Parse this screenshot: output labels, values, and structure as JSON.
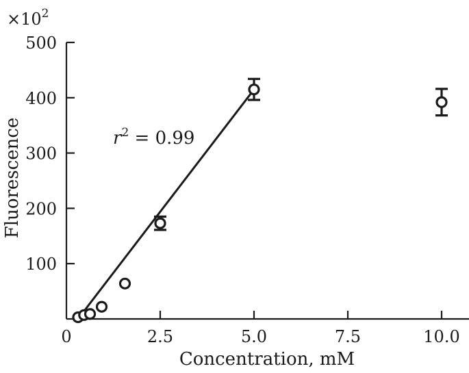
{
  "chart_data": {
    "type": "scatter",
    "title": "",
    "xlabel": "Concentration, mM",
    "ylabel": "Fluorescence",
    "y_multiplier_label": "×10",
    "y_multiplier_exponent": "2",
    "xlim": [
      0,
      11.3
    ],
    "ylim": [
      0,
      500
    ],
    "x_ticks": [
      0,
      2.5,
      5.0,
      7.5,
      10.0
    ],
    "x_tick_labels": [
      "0",
      "2.5",
      "5.0",
      "7.5",
      "10.0"
    ],
    "y_ticks": [
      100,
      200,
      300,
      400,
      500
    ],
    "y_tick_labels": [
      "100",
      "200",
      "300",
      "400",
      "500"
    ],
    "points": [
      {
        "x": 0.31,
        "y": 3,
        "err": 0
      },
      {
        "x": 0.47,
        "y": 7,
        "err": 0
      },
      {
        "x": 0.63,
        "y": 9,
        "err": 0
      },
      {
        "x": 0.94,
        "y": 22,
        "err": 0
      },
      {
        "x": 1.56,
        "y": 64,
        "err": 0
      },
      {
        "x": 2.5,
        "y": 173,
        "err": 12
      },
      {
        "x": 5.0,
        "y": 415,
        "err": 19
      },
      {
        "x": 10.0,
        "y": 392,
        "err": 24
      }
    ],
    "fit_line": {
      "x1": 0.31,
      "y1": 0,
      "x2": 5.0,
      "y2": 415
    },
    "annotation": {
      "r_symbol": "r",
      "r_exponent": "2",
      "r_value_text": " = 0.99"
    },
    "grid": false,
    "legend": "none"
  }
}
